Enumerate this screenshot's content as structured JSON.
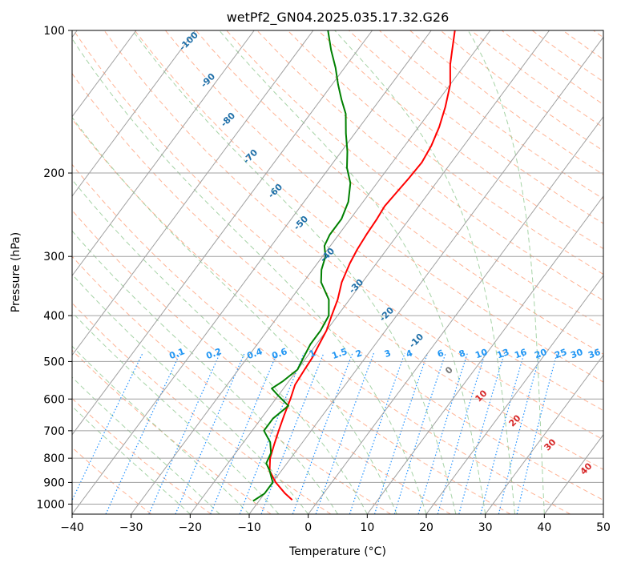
{
  "chart_data": {
    "type": "skew-t",
    "title": "wetPf2_GN04.2025.035.17.32.G26",
    "xlabel": "Temperature (°C)",
    "ylabel": "Pressure (hPa)",
    "xlim": [
      -40,
      50
    ],
    "ylim": [
      1050,
      100
    ],
    "y_scale": "log",
    "grid": true,
    "x_ticks": [
      -40,
      -30,
      -20,
      -10,
      0,
      10,
      20,
      30,
      40,
      50
    ],
    "x_tick_labels": [
      "−40",
      "−30",
      "−20",
      "−10",
      "0",
      "10",
      "20",
      "30",
      "40",
      "50"
    ],
    "y_ticks": [
      1000,
      900,
      800,
      700,
      600,
      500,
      400,
      300,
      200,
      100
    ],
    "y_tick_labels": [
      "1000",
      "900",
      "800",
      "700",
      "600",
      "500",
      "400",
      "300",
      "200",
      "100"
    ],
    "series": [
      {
        "color": "#ff0000",
        "points": [
          [
            980,
            -4.5
          ],
          [
            950,
            -6.5
          ],
          [
            900,
            -9.5
          ],
          [
            850,
            -12
          ],
          [
            800,
            -13.5
          ],
          [
            750,
            -14.5
          ],
          [
            700,
            -15.5
          ],
          [
            650,
            -16.5
          ],
          [
            600,
            -17.5
          ],
          [
            560,
            -18.5
          ],
          [
            520,
            -18.8
          ],
          [
            490,
            -19
          ],
          [
            460,
            -19.5
          ],
          [
            430,
            -20
          ],
          [
            400,
            -21
          ],
          [
            370,
            -22
          ],
          [
            340,
            -23.5
          ],
          [
            310,
            -24.5
          ],
          [
            290,
            -25
          ],
          [
            270,
            -25.3
          ],
          [
            250,
            -25.5
          ],
          [
            235,
            -25.8
          ],
          [
            220,
            -25.5
          ],
          [
            205,
            -25.2
          ],
          [
            190,
            -25
          ],
          [
            175,
            -25.5
          ],
          [
            160,
            -26.5
          ],
          [
            145,
            -28
          ],
          [
            130,
            -30
          ],
          [
            118,
            -32.5
          ],
          [
            110,
            -34
          ],
          [
            100,
            -36
          ]
        ]
      },
      {
        "color": "#008000",
        "points": [
          [
            985,
            -11
          ],
          [
            950,
            -10
          ],
          [
            900,
            -10
          ],
          [
            850,
            -12
          ],
          [
            820,
            -13.5
          ],
          [
            780,
            -14
          ],
          [
            740,
            -15.5
          ],
          [
            700,
            -18
          ],
          [
            660,
            -18
          ],
          [
            620,
            -17
          ],
          [
            590,
            -20
          ],
          [
            570,
            -22
          ],
          [
            550,
            -21
          ],
          [
            520,
            -20
          ],
          [
            490,
            -20.5
          ],
          [
            460,
            -21
          ],
          [
            430,
            -21
          ],
          [
            400,
            -21.5
          ],
          [
            370,
            -23.5
          ],
          [
            340,
            -27
          ],
          [
            320,
            -28.5
          ],
          [
            300,
            -29.5
          ],
          [
            285,
            -31
          ],
          [
            270,
            -31.5
          ],
          [
            250,
            -31.5
          ],
          [
            230,
            -32.5
          ],
          [
            210,
            -34.5
          ],
          [
            195,
            -37
          ],
          [
            180,
            -39
          ],
          [
            165,
            -41.5
          ],
          [
            150,
            -44
          ],
          [
            140,
            -46.5
          ],
          [
            130,
            -49
          ],
          [
            120,
            -51.5
          ],
          [
            110,
            -54.5
          ],
          [
            100,
            -57.5
          ]
        ]
      }
    ],
    "dry_adiabats_label_values": [
      "-100",
      "-90",
      "-80",
      "-70",
      "-60",
      "-50",
      "-40",
      "-30",
      "-20",
      "-10"
    ],
    "mixing_ratio_labels": [
      "0.1",
      "0.2",
      "0.4",
      "0.6",
      "1",
      "1.5",
      "2",
      "3",
      "4",
      "6",
      "8",
      "10",
      "13",
      "16",
      "20",
      "25",
      "30",
      "36"
    ],
    "moist_adiabat_labels": [
      "0",
      "10",
      "20",
      "30",
      "40"
    ],
    "colors": {
      "temperature": "#ff0000",
      "dewpoint": "#008000",
      "isotherm": "#a0a0a0",
      "dry_adiabat": "#ffa07a",
      "moist_adiabat": "#90c890",
      "mixing_ratio": "#1e90ff",
      "dry_label": "#1f6fa8",
      "moist_label": "#d62728",
      "mixing_label": "#2196f3"
    }
  }
}
